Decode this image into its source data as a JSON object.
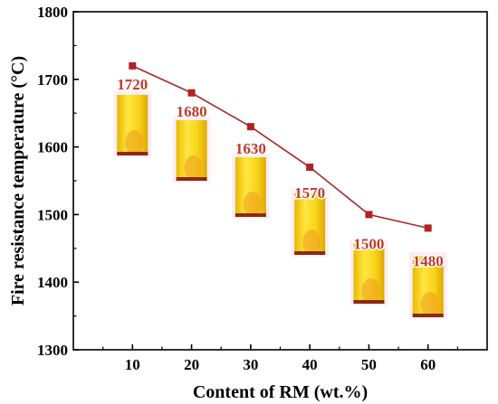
{
  "chart_data": {
    "type": "line",
    "x": [
      10,
      20,
      30,
      40,
      50,
      60
    ],
    "series": [
      {
        "values": [
          1720,
          1680,
          1630,
          1570,
          1500,
          1480
        ]
      }
    ],
    "data_labels": [
      "1720",
      "1680",
      "1630",
      "1570",
      "1500",
      "1480"
    ],
    "xlabel": "Content of RM (wt.%)",
    "ylabel": "Fire resistance temperature (°C)",
    "xticks": [
      "10",
      "20",
      "30",
      "40",
      "50",
      "60"
    ],
    "yticks": [
      "1300",
      "1400",
      "1500",
      "1600",
      "1700",
      "1800"
    ],
    "ylim": [
      1300,
      1800
    ],
    "xlim": [
      0,
      70
    ],
    "grid": false,
    "legend": "none",
    "marker": "square",
    "inset_images": "sample photos under each point",
    "colors": {
      "line": "#a52a2a",
      "marker": "#b22222",
      "label": "#c0392b",
      "sample_body": "#f5d21a",
      "sample_base": "#8b2a10"
    }
  }
}
